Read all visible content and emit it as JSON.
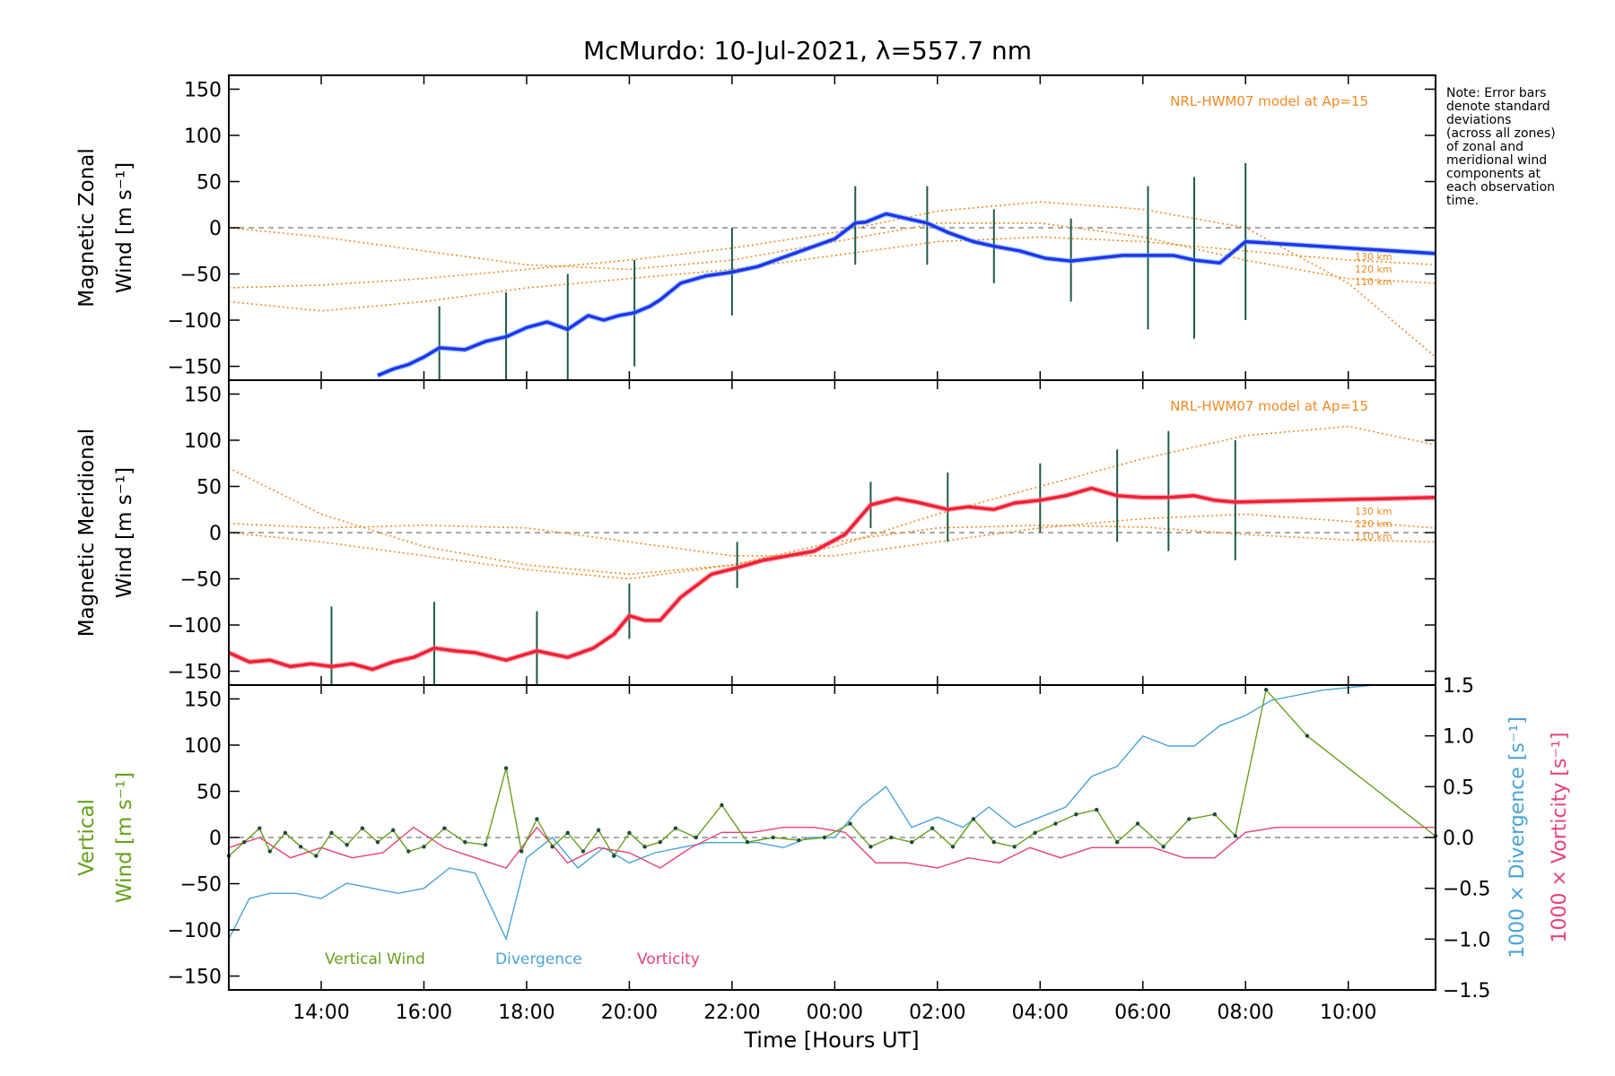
{
  "title": "McMurdo: 10-Jul-2021, λ=557.7 nm",
  "note_lines": [
    "Note: Error bars",
    "denote standard",
    "deviations",
    "(across all zones)",
    "of zonal and",
    "meridional wind",
    "components at",
    "each observation",
    "time."
  ],
  "model_label": "NRL-HWM07 model at Ap=15",
  "altitude_labels": [
    "130 km",
    "120 km",
    "110 km"
  ],
  "x_axis_title": "Time [Hours UT]",
  "x_tick_labels": [
    "14:00",
    "16:00",
    "18:00",
    "20:00",
    "22:00",
    "00:00",
    "02:00",
    "04:00",
    "06:00",
    "08:00",
    "10:00"
  ],
  "y_tick_labels": [
    "150",
    "100",
    "50",
    "0",
    "−50",
    "−100",
    "−150"
  ],
  "right_tick_labels": [
    "1.5",
    "1.0",
    "0.5",
    "0.0",
    "−0.5",
    "−1.0",
    "−1.5"
  ],
  "panel1": {
    "ylabel_line1": "Magnetic Zonal",
    "ylabel_line2": "Wind [m s⁻¹]"
  },
  "panel2": {
    "ylabel_line1": "Magnetic Meridional",
    "ylabel_line2": "Wind [m s⁻¹]"
  },
  "panel3": {
    "ylabel_line1": "Vertical",
    "ylabel_line2": "Wind [m s⁻¹]",
    "right_label_div": "1000 × Divergence [s⁻¹]",
    "right_label_vort": "1000 × Vorticity [s⁻¹]",
    "legend": [
      "Vertical Wind",
      "Divergence",
      "Vorticity"
    ]
  },
  "colors": {
    "zonal": "#2233ee",
    "zonal_light": "#55aaee",
    "meridional": "#ee2233",
    "meridional_light": "#ff6688",
    "model": "#f08a24",
    "vertical": "#66a01c",
    "divergence": "#4aa3d8",
    "vorticity": "#e8407a",
    "scatter": "#a8a4dc",
    "errbar": "#1e5a44"
  },
  "chart_data": [
    {
      "type": "line",
      "title": "McMurdo: 10-Jul-2021, λ=557.7 nm",
      "ylabel": "Magnetic Zonal Wind [m s-1]",
      "xlim": [
        12.2,
        35.7
      ],
      "ylim": [
        -165,
        165
      ],
      "x_unit": "hours UT from 00:00 10-Jul-2021 (values above 24 are 11-Jul)",
      "series": [
        {
          "name": "Zonal wind",
          "x": [
            15.1,
            15.4,
            15.7,
            16.0,
            16.3,
            16.8,
            17.2,
            17.6,
            18.0,
            18.4,
            18.8,
            19.2,
            19.5,
            19.8,
            20.1,
            20.4,
            20.6,
            21.0,
            21.5,
            22.0,
            22.5,
            23.6,
            24.0,
            24.4,
            24.6,
            25.0,
            25.4,
            25.8,
            26.2,
            26.7,
            27.1,
            27.6,
            28.1,
            28.6,
            29.1,
            29.6,
            30.1,
            30.6,
            31.0,
            31.5,
            32.0,
            35.7
          ],
          "y": [
            -160,
            -153,
            -148,
            -140,
            -130,
            -132,
            -123,
            -118,
            -108,
            -102,
            -110,
            -95,
            -100,
            -95,
            -92,
            -85,
            -78,
            -60,
            -52,
            -48,
            -42,
            -20,
            -12,
            5,
            6,
            15,
            10,
            5,
            -5,
            -15,
            -20,
            -25,
            -33,
            -36,
            -33,
            -30,
            -30,
            -30,
            -35,
            -38,
            -15,
            -28
          ]
        }
      ],
      "error_bars": [
        {
          "x": 16.3,
          "low": -175,
          "high": -85
        },
        {
          "x": 17.6,
          "low": -165,
          "high": -70
        },
        {
          "x": 18.8,
          "low": -165,
          "high": -50
        },
        {
          "x": 20.1,
          "low": -150,
          "high": -35
        },
        {
          "x": 22.0,
          "low": -95,
          "high": 0
        },
        {
          "x": 24.4,
          "low": -40,
          "high": 45
        },
        {
          "x": 25.8,
          "low": -40,
          "high": 45
        },
        {
          "x": 27.1,
          "low": -60,
          "high": 20
        },
        {
          "x": 28.6,
          "low": -80,
          "high": 10
        },
        {
          "x": 30.1,
          "low": -110,
          "high": 45
        },
        {
          "x": 31.0,
          "low": -120,
          "high": 55
        },
        {
          "x": 32.0,
          "low": -100,
          "high": 70
        }
      ],
      "model_curves": [
        {
          "name": "130 km",
          "x": [
            12.2,
            14,
            16,
            18,
            20,
            22,
            24,
            26,
            28,
            30,
            32,
            34,
            35.7
          ],
          "y": [
            -65,
            -62,
            -55,
            -45,
            -35,
            -22,
            -5,
            18,
            28,
            20,
            0,
            -60,
            -140
          ]
        },
        {
          "name": "120 km",
          "x": [
            12.2,
            14,
            16,
            18,
            20,
            22,
            24,
            26,
            28,
            30,
            32,
            34,
            35.7
          ],
          "y": [
            0,
            -10,
            -25,
            -40,
            -45,
            -35,
            -15,
            5,
            5,
            -10,
            -35,
            -55,
            -60
          ]
        },
        {
          "name": "110 km",
          "x": [
            12.2,
            14,
            16,
            18,
            20,
            22,
            24,
            26,
            28,
            30,
            32,
            34,
            35.7
          ],
          "y": [
            -80,
            -90,
            -80,
            -65,
            -55,
            -45,
            -30,
            -15,
            -10,
            -15,
            -25,
            -35,
            -40
          ]
        }
      ]
    },
    {
      "type": "line",
      "ylabel": "Magnetic Meridional Wind [m s-1]",
      "xlim": [
        12.2,
        35.7
      ],
      "ylim": [
        -165,
        165
      ],
      "series": [
        {
          "name": "Meridional wind",
          "x": [
            12.2,
            12.6,
            13.0,
            13.4,
            13.8,
            14.2,
            14.6,
            15.0,
            15.4,
            15.8,
            16.2,
            16.6,
            17.0,
            17.6,
            18.2,
            18.8,
            19.3,
            19.7,
            20.0,
            20.3,
            20.6,
            21.0,
            21.6,
            22.1,
            22.6,
            23.6,
            24.2,
            24.7,
            25.2,
            25.6,
            26.2,
            26.6,
            27.1,
            27.5,
            28.0,
            28.5,
            29.0,
            29.5,
            30.0,
            30.5,
            31.0,
            31.4,
            31.8,
            35.7
          ],
          "y": [
            -130,
            -140,
            -138,
            -145,
            -142,
            -145,
            -142,
            -148,
            -140,
            -135,
            -125,
            -128,
            -130,
            -138,
            -128,
            -135,
            -125,
            -110,
            -90,
            -95,
            -95,
            -70,
            -45,
            -38,
            -30,
            -20,
            -2,
            30,
            37,
            33,
            25,
            28,
            25,
            32,
            35,
            40,
            48,
            40,
            38,
            38,
            40,
            35,
            33,
            38
          ]
        }
      ],
      "error_bars": [
        {
          "x": 14.2,
          "low": -170,
          "high": -80
        },
        {
          "x": 16.2,
          "low": -175,
          "high": -75
        },
        {
          "x": 18.2,
          "low": -170,
          "high": -85
        },
        {
          "x": 20.0,
          "low": -115,
          "high": -55
        },
        {
          "x": 22.1,
          "low": -60,
          "high": -10
        },
        {
          "x": 24.7,
          "low": 5,
          "high": 55
        },
        {
          "x": 26.2,
          "low": -10,
          "high": 65
        },
        {
          "x": 28.0,
          "low": 0,
          "high": 75
        },
        {
          "x": 29.5,
          "low": -10,
          "high": 90
        },
        {
          "x": 30.5,
          "low": -20,
          "high": 110
        },
        {
          "x": 31.8,
          "low": -30,
          "high": 100
        }
      ],
      "model_curves": [
        {
          "name": "130 km",
          "x": [
            12.2,
            14,
            16,
            18,
            20,
            22,
            24,
            26,
            28,
            30,
            32,
            34,
            35.7
          ],
          "y": [
            70,
            20,
            -15,
            -35,
            -45,
            -35,
            -15,
            20,
            50,
            80,
            105,
            115,
            95
          ]
        },
        {
          "name": "120 km",
          "x": [
            12.2,
            14,
            16,
            18,
            20,
            22,
            24,
            26,
            28,
            30,
            32,
            34,
            35.7
          ],
          "y": [
            10,
            5,
            8,
            5,
            -10,
            -25,
            -25,
            -10,
            5,
            15,
            20,
            12,
            5
          ]
        },
        {
          "name": "110 km",
          "x": [
            12.2,
            14,
            16,
            18,
            20,
            22,
            24,
            26,
            28,
            30,
            32,
            34,
            35.7
          ],
          "y": [
            0,
            -10,
            -25,
            -40,
            -50,
            -35,
            -10,
            5,
            8,
            6,
            -2,
            -8,
            -10
          ]
        }
      ]
    },
    {
      "type": "line",
      "ylabel": "Vertical Wind [m s-1]",
      "y2label": "1000 x Divergence / Vorticity [s-1]",
      "xlim": [
        12.2,
        35.7
      ],
      "ylim": [
        -165,
        165
      ],
      "y2lim": [
        -1.5,
        1.5
      ],
      "series": [
        {
          "name": "Vertical Wind",
          "axis": "left",
          "x": [
            12.2,
            12.5,
            12.8,
            13.0,
            13.3,
            13.6,
            13.9,
            14.2,
            14.5,
            14.8,
            15.1,
            15.4,
            15.7,
            16.0,
            16.4,
            16.8,
            17.2,
            17.6,
            17.9,
            18.2,
            18.5,
            18.8,
            19.1,
            19.4,
            19.7,
            20.0,
            20.3,
            20.6,
            20.9,
            21.3,
            21.8,
            22.3,
            22.8,
            23.3,
            23.8,
            24.3,
            24.7,
            25.1,
            25.5,
            25.9,
            26.3,
            26.7,
            27.1,
            27.5,
            27.9,
            28.3,
            28.7,
            29.1,
            29.5,
            29.9,
            30.4,
            30.9,
            31.4,
            31.8,
            32.4,
            33.2,
            35.7
          ],
          "y": [
            -20,
            -5,
            10,
            -15,
            5,
            -10,
            -20,
            5,
            -8,
            10,
            -5,
            8,
            -15,
            -10,
            10,
            -5,
            -8,
            75,
            -15,
            20,
            -10,
            5,
            -15,
            8,
            -20,
            5,
            -10,
            -5,
            10,
            0,
            35,
            -5,
            0,
            -3,
            0,
            15,
            -10,
            0,
            -5,
            10,
            -10,
            20,
            -5,
            -10,
            5,
            15,
            25,
            30,
            -5,
            15,
            -10,
            20,
            25,
            1.7,
            160,
            110,
            1.5
          ]
        },
        {
          "name": "Divergence",
          "axis": "right",
          "x": [
            12.2,
            12.6,
            13.0,
            13.5,
            14.0,
            14.5,
            15.0,
            15.5,
            16.0,
            16.5,
            17.0,
            17.6,
            18.0,
            18.5,
            19.0,
            19.5,
            20.0,
            20.5,
            21.0,
            21.5,
            22.0,
            22.5,
            23.0,
            23.5,
            24.0,
            24.5,
            25.0,
            25.5,
            26.0,
            26.5,
            27.0,
            27.5,
            28.0,
            28.5,
            29.0,
            29.5,
            30.0,
            30.5,
            31.0,
            31.5,
            32.0,
            32.5,
            33.5,
            34.5
          ],
          "y": [
            -1.0,
            -0.6,
            -0.55,
            -0.55,
            -0.6,
            -0.45,
            -0.5,
            -0.55,
            -0.5,
            -0.3,
            -0.35,
            -1.0,
            -0.2,
            0.0,
            -0.3,
            -0.1,
            -0.25,
            -0.15,
            -0.1,
            -0.05,
            -0.05,
            -0.05,
            -0.1,
            0.0,
            0.0,
            0.3,
            0.5,
            0.1,
            0.2,
            0.1,
            0.3,
            0.1,
            0.2,
            0.3,
            0.6,
            0.7,
            1.0,
            0.9,
            0.9,
            1.1,
            1.2,
            1.35,
            1.45,
            1.55
          ]
        },
        {
          "name": "Vorticity",
          "axis": "right",
          "x": [
            12.2,
            12.8,
            13.4,
            14.0,
            14.6,
            15.2,
            15.8,
            16.4,
            17.0,
            17.6,
            18.2,
            18.8,
            19.4,
            20.0,
            20.6,
            21.2,
            21.8,
            22.4,
            23.0,
            23.6,
            24.2,
            24.8,
            25.4,
            26.0,
            26.6,
            27.2,
            27.8,
            28.4,
            29.0,
            29.6,
            30.2,
            30.8,
            31.4,
            32.0,
            32.6,
            35.7
          ],
          "y": [
            -0.1,
            0.0,
            -0.2,
            -0.1,
            -0.2,
            -0.15,
            0.1,
            -0.1,
            -0.2,
            -0.3,
            0.1,
            -0.25,
            -0.1,
            -0.15,
            -0.3,
            -0.1,
            0.05,
            0.05,
            0.1,
            0.1,
            0.05,
            -0.25,
            -0.25,
            -0.3,
            -0.2,
            -0.25,
            -0.1,
            -0.2,
            -0.1,
            -0.1,
            -0.1,
            -0.2,
            -0.2,
            0.05,
            0.1,
            0.1
          ]
        }
      ]
    }
  ]
}
